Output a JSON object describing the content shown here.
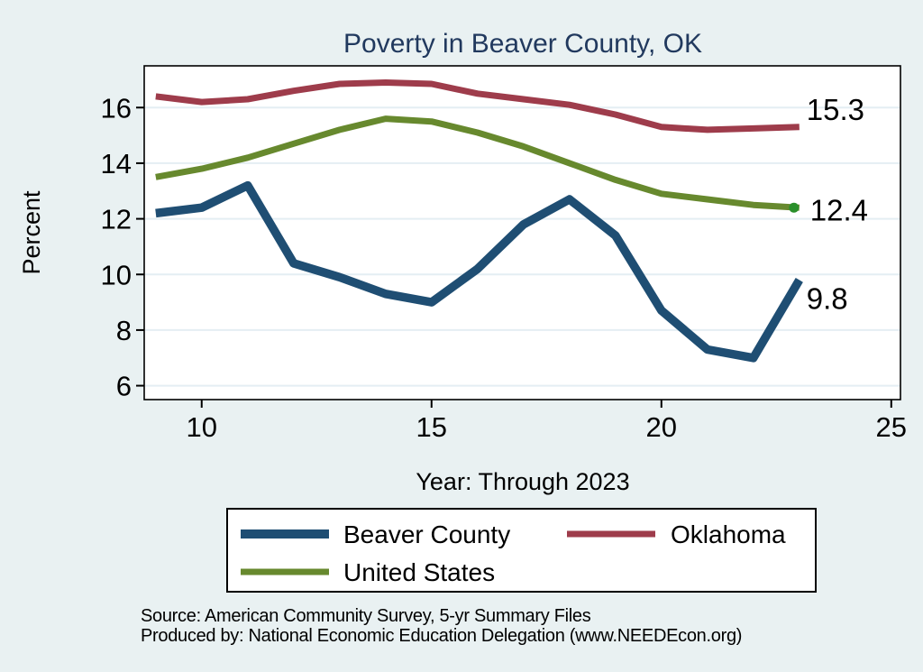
{
  "window": {
    "background": "#e9f1f2"
  },
  "chart": {
    "title": "Poverty in Beaver County, OK",
    "title_color": "#21395e",
    "x_axis_label": "Year: Through 2023",
    "y_axis_label": "Percent",
    "source_line1": "Source: American Community Survey, 5-yr Summary Files",
    "source_line2": "Produced by: National Economic Education Delegation (www.NEEDEcon.org)"
  },
  "chart_data": {
    "type": "line",
    "title": "Poverty in Beaver County, OK",
    "xlabel": "Year: Through 2023",
    "ylabel": "Percent",
    "x_note": "years coded 9-23 meaning 2009-2023 (ACS 5-yr estimates)",
    "x": [
      9,
      10,
      11,
      12,
      13,
      14,
      15,
      16,
      17,
      18,
      19,
      20,
      21,
      22,
      23
    ],
    "xticks": [
      10,
      15,
      20,
      25
    ],
    "yticks": [
      6,
      8,
      10,
      12,
      14,
      16
    ],
    "xlim": [
      8.75,
      25.2
    ],
    "ylim": [
      5.5,
      17.5
    ],
    "grid": "horizontal",
    "grid_color": "#e4eef3",
    "plot_bg": "#ffffff",
    "axis_color": "#000000",
    "legend_position": "bottom",
    "series": [
      {
        "name": "Beaver County",
        "color": "#1f4e73",
        "line_width": 9.5,
        "end_label": "9.8",
        "values": [
          12.2,
          12.4,
          13.2,
          10.4,
          9.9,
          9.3,
          9.0,
          10.2,
          11.8,
          12.7,
          11.4,
          8.7,
          7.3,
          7.0,
          9.8
        ]
      },
      {
        "name": "Oklahoma",
        "color": "#9e3c4b",
        "line_width": 7,
        "end_label": "15.3",
        "values": [
          16.4,
          16.2,
          16.3,
          16.6,
          16.85,
          16.9,
          16.85,
          16.5,
          16.3,
          16.1,
          15.75,
          15.3,
          15.2,
          15.25,
          15.3
        ]
      },
      {
        "name": "United States",
        "color": "#67892e",
        "line_width": 7,
        "end_label": "12.4",
        "end_marker_color": "#2a8f2a",
        "values": [
          13.5,
          13.8,
          14.2,
          14.7,
          15.2,
          15.6,
          15.5,
          15.1,
          14.6,
          14.0,
          13.4,
          12.9,
          12.7,
          12.5,
          12.4
        ]
      }
    ]
  }
}
